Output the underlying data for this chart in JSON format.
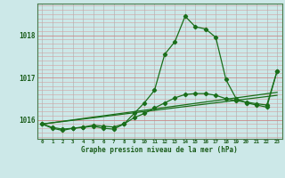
{
  "title": "Graphe pression niveau de la mer (hPa)",
  "background_color": "#cce8e8",
  "line_color": "#1a6e1a",
  "marker_color": "#1a6e1a",
  "xlim": [
    -0.5,
    23.5
  ],
  "ylim": [
    1015.55,
    1018.75
  ],
  "yticks": [
    1016,
    1017,
    1018
  ],
  "xticks": [
    0,
    1,
    2,
    3,
    4,
    5,
    6,
    7,
    8,
    9,
    10,
    11,
    12,
    13,
    14,
    15,
    16,
    17,
    18,
    19,
    20,
    21,
    22,
    23
  ],
  "hgrid_minor": [
    1015.6,
    1015.7,
    1015.8,
    1015.9,
    1016.1,
    1016.2,
    1016.3,
    1016.4,
    1016.5,
    1016.6,
    1016.7,
    1016.8,
    1016.9,
    1017.1,
    1017.2,
    1017.3,
    1017.4,
    1017.5,
    1017.6,
    1017.7,
    1017.8,
    1017.9,
    1018.1,
    1018.2,
    1018.3,
    1018.4,
    1018.5,
    1018.6,
    1018.7
  ],
  "hgrid_major": [
    1016.0,
    1017.0,
    1018.0
  ],
  "series_main": {
    "x": [
      0,
      1,
      2,
      3,
      4,
      5,
      6,
      7,
      8,
      9,
      10,
      11,
      12,
      13,
      14,
      15,
      16,
      17,
      18,
      19,
      20,
      21,
      22,
      23
    ],
    "y": [
      1015.9,
      1015.8,
      1015.75,
      1015.8,
      1015.82,
      1015.85,
      1015.8,
      1015.78,
      1015.9,
      1016.15,
      1016.4,
      1016.7,
      1017.55,
      1017.85,
      1018.45,
      1018.2,
      1018.15,
      1017.95,
      1016.95,
      1016.5,
      1016.4,
      1016.35,
      1016.3,
      1017.15
    ]
  },
  "series_smooth": {
    "x": [
      0,
      1,
      2,
      3,
      4,
      5,
      6,
      7,
      8,
      9,
      10,
      11,
      12,
      13,
      14,
      15,
      16,
      17,
      18,
      19,
      20,
      21,
      22,
      23
    ],
    "y": [
      1015.9,
      1015.82,
      1015.78,
      1015.8,
      1015.83,
      1015.87,
      1015.85,
      1015.83,
      1015.9,
      1016.05,
      1016.15,
      1016.28,
      1016.4,
      1016.52,
      1016.6,
      1016.62,
      1016.62,
      1016.58,
      1016.5,
      1016.45,
      1016.42,
      1016.38,
      1016.35,
      1017.15
    ]
  },
  "series_line1": {
    "x": [
      0,
      23
    ],
    "y": [
      1015.9,
      1016.65
    ]
  },
  "series_line2": {
    "x": [
      0,
      23
    ],
    "y": [
      1015.9,
      1016.58
    ]
  }
}
